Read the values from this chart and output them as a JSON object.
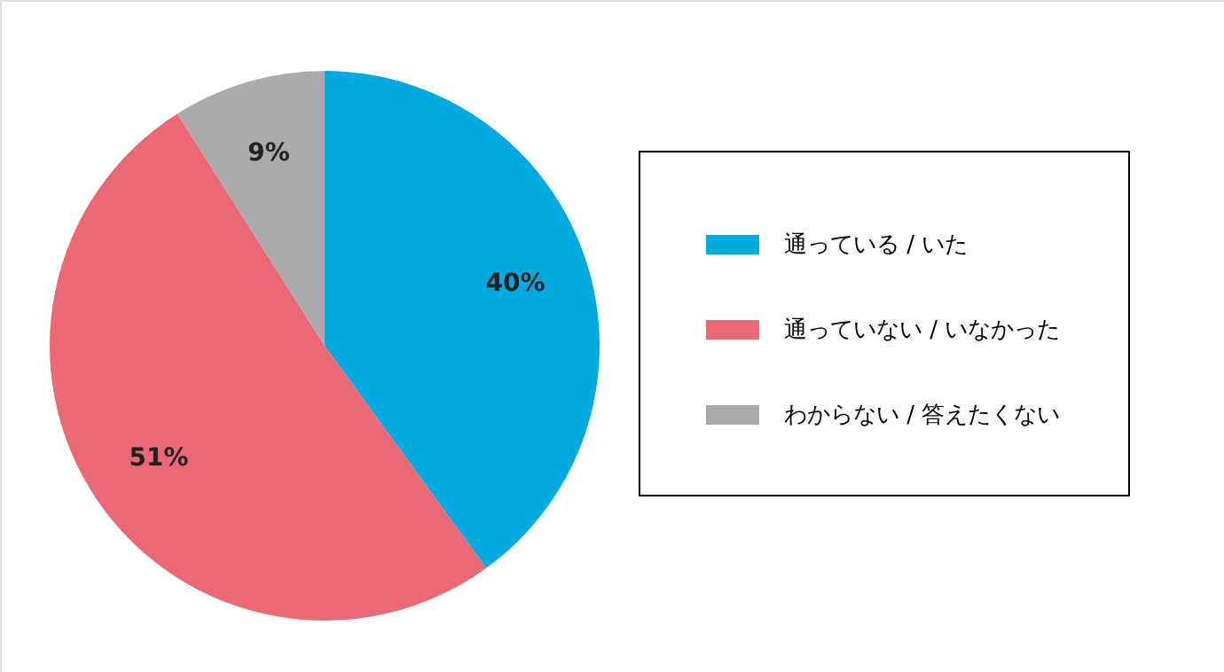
{
  "chart_data": {
    "type": "pie",
    "categories": [
      "通っている / いた",
      "通っていない / いなかった",
      "わからない / 答えたくない"
    ],
    "values": [
      40,
      51,
      9
    ],
    "colors": [
      "#00a9e0",
      "#eb6877",
      "#aaaaaa"
    ],
    "value_labels": [
      "40%",
      "51%",
      "9%"
    ],
    "legend": "right"
  }
}
